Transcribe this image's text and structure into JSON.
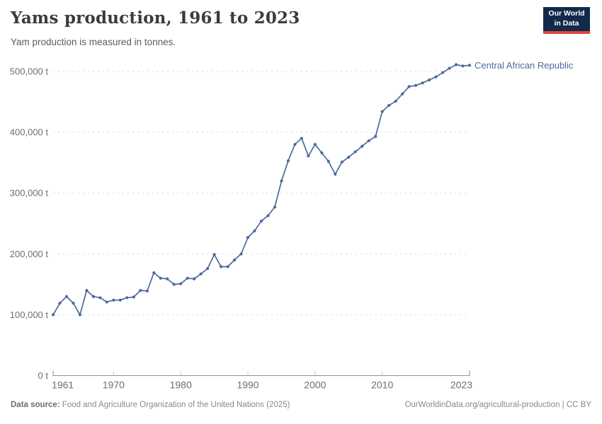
{
  "header": {
    "title": "Yams production, 1961 to 2023",
    "subtitle": "Yam production is measured in tonnes."
  },
  "logo": {
    "line1": "Our World",
    "line2": "in Data"
  },
  "chart_data": {
    "type": "line",
    "title": "Yams production, 1961 to 2023",
    "unit": "tonnes",
    "grid": "horizontal-dashed",
    "legend_position": "right-of-line-end-label",
    "ylim": [
      0,
      500000
    ],
    "yticks": [
      0,
      100000,
      200000,
      300000,
      400000,
      500000
    ],
    "ytick_labels": [
      "0 t",
      "100,000 t",
      "200,000 t",
      "300,000 t",
      "400,000 t",
      "500,000 t"
    ],
    "xticks": [
      1961,
      1970,
      1980,
      1990,
      2000,
      2010,
      2023
    ],
    "x": [
      1961,
      1962,
      1963,
      1964,
      1965,
      1966,
      1967,
      1968,
      1969,
      1970,
      1971,
      1972,
      1973,
      1974,
      1975,
      1976,
      1977,
      1978,
      1979,
      1980,
      1981,
      1982,
      1983,
      1984,
      1985,
      1986,
      1987,
      1988,
      1989,
      1990,
      1991,
      1992,
      1993,
      1994,
      1995,
      1996,
      1997,
      1998,
      1999,
      2000,
      2001,
      2002,
      2003,
      2004,
      2005,
      2006,
      2007,
      2008,
      2009,
      2010,
      2011,
      2012,
      2013,
      2014,
      2015,
      2016,
      2017,
      2018,
      2019,
      2020,
      2021,
      2022,
      2023
    ],
    "series": [
      {
        "name": "Central African Republic",
        "color": "#4c6a9c",
        "values": [
          100000,
          119000,
          130000,
          119000,
          100000,
          140000,
          130000,
          128000,
          121000,
          124000,
          124000,
          128000,
          129000,
          140000,
          139000,
          169000,
          160000,
          159000,
          150000,
          151000,
          160000,
          159000,
          167000,
          176000,
          199000,
          179000,
          179000,
          190000,
          200000,
          227000,
          238000,
          254000,
          263000,
          277000,
          320000,
          353000,
          380000,
          390000,
          361000,
          380000,
          366000,
          352000,
          331000,
          351000,
          359000,
          368000,
          377000,
          386000,
          393000,
          434000,
          444000,
          451000,
          463000,
          475000,
          477000,
          481000,
          486000,
          491000,
          498000,
          505000,
          511000,
          509000,
          510000
        ]
      }
    ]
  },
  "footer": {
    "source_label": "Data source:",
    "source_text": " Food and Agriculture Organization of the United Nations (2025)",
    "right_text": "OurWorldinData.org/agricultural-production | CC BY"
  }
}
